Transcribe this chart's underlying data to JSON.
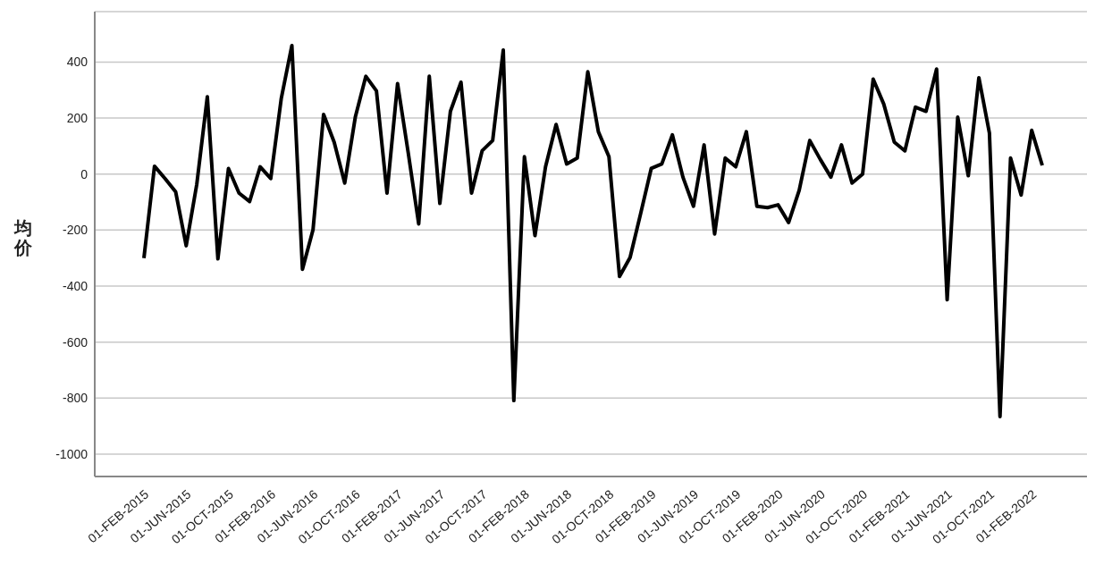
{
  "chart_data": {
    "type": "line",
    "ylabel": "均价",
    "categories": [
      "01-FEB-2015",
      null,
      null,
      null,
      "01-JUN-2015",
      null,
      null,
      null,
      "01-OCT-2015",
      null,
      null,
      null,
      "01-FEB-2016",
      null,
      null,
      null,
      "01-JUN-2016",
      null,
      null,
      null,
      "01-OCT-2016",
      null,
      null,
      null,
      "01-FEB-2017",
      null,
      null,
      null,
      "01-JUN-2017",
      null,
      null,
      null,
      "01-OCT-2017",
      null,
      null,
      null,
      "01-FEB-2018",
      null,
      null,
      null,
      "01-JUN-2018",
      null,
      null,
      null,
      "01-OCT-2018",
      null,
      null,
      null,
      "01-FEB-2019",
      null,
      null,
      null,
      "01-JUN-2019",
      null,
      null,
      null,
      "01-OCT-2019",
      null,
      null,
      null,
      "01-FEB-2020",
      null,
      null,
      null,
      "01-JUN-2020",
      null,
      null,
      null,
      "01-OCT-2020",
      null,
      null,
      null,
      "01-FEB-2021",
      null,
      null,
      null,
      "01-JUN-2021",
      null,
      null,
      null,
      "01-OCT-2021",
      null,
      null,
      null,
      "01-FEB-2022",
      null
    ],
    "series": [
      {
        "color": "#000000",
        "values": [
          -300,
          28,
          -16,
          -63,
          -256,
          -37,
          276,
          -303,
          20,
          -68,
          -98,
          26,
          -16,
          271,
          459,
          -340,
          -199,
          213,
          114,
          -32,
          203,
          349,
          297,
          -68,
          323,
          78,
          -178,
          349,
          -105,
          224,
          328,
          -68,
          83,
          120,
          443,
          -809,
          62,
          -220,
          26,
          177,
          36,
          57,
          365,
          151,
          62,
          -366,
          -298,
          -141,
          20,
          36,
          140,
          -11,
          -115,
          104,
          -214,
          57,
          26,
          151,
          -115,
          -120,
          -110,
          -173,
          -58,
          120,
          52,
          -11,
          104,
          -32,
          0,
          339,
          250,
          114,
          83,
          239,
          224,
          375,
          -449,
          203,
          -6,
          344,
          146,
          -866,
          57,
          -75,
          156,
          31
        ]
      }
    ],
    "ylim": [
      -1080,
      580
    ],
    "yticks": [
      -1000,
      -800,
      -600,
      -400,
      -200,
      0,
      200,
      400
    ],
    "grid": "y",
    "legend": false,
    "marker": "none",
    "line_style": "solid"
  }
}
